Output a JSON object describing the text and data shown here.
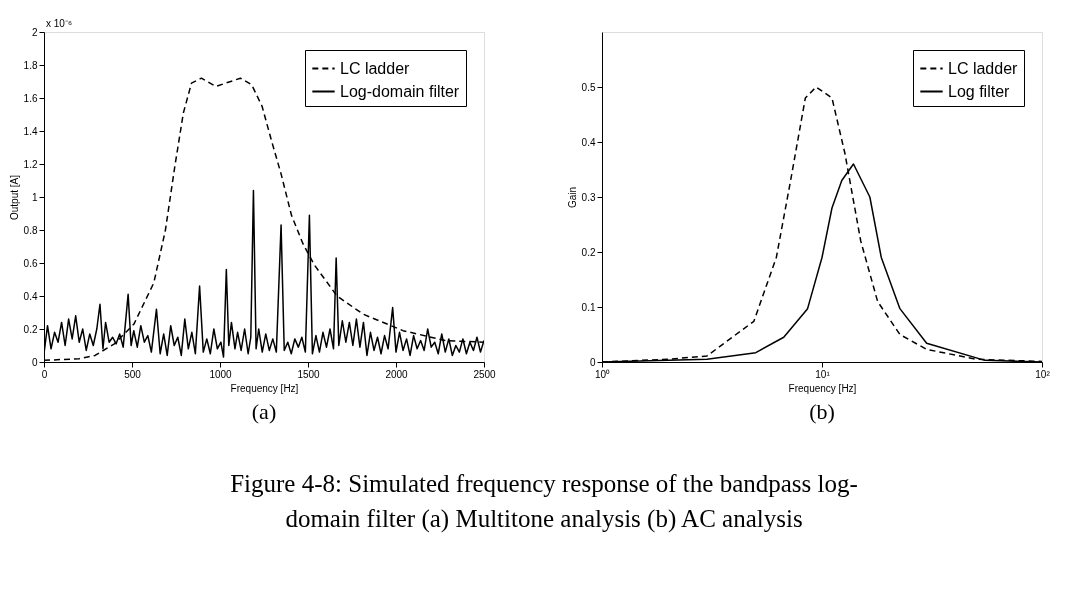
{
  "chart_data": [
    {
      "type": "line",
      "xlabel": "Frequency [Hz]",
      "ylabel": "Output [A]",
      "xlim": [
        0,
        2500
      ],
      "ylim": [
        0,
        2
      ],
      "xticks": [
        0,
        500,
        1000,
        1500,
        2000,
        2500
      ],
      "yticks": [
        0,
        0.2,
        0.4,
        0.6,
        0.8,
        1,
        1.2,
        1.4,
        1.6,
        1.8,
        2
      ],
      "grid": false,
      "legend": "top right",
      "annotations": [
        "x 10⁻⁶",
        "(a)"
      ],
      "series": [
        {
          "name": "LC ladder",
          "color": "#000000",
          "line_style": "dashed",
          "x": [
            0,
            200,
            290,
            400,
            511,
            624,
            690,
            744,
            792,
            838,
            894,
            976,
            1116,
            1180,
            1239,
            1293,
            1347,
            1406,
            1470,
            1535,
            1665,
            1813,
            2040,
            2280,
            2500
          ],
          "values": [
            0.01,
            0.02,
            0.04,
            0.11,
            0.23,
            0.48,
            0.8,
            1.19,
            1.51,
            1.69,
            1.72,
            1.67,
            1.72,
            1.68,
            1.55,
            1.34,
            1.14,
            0.89,
            0.72,
            0.59,
            0.4,
            0.29,
            0.19,
            0.13,
            0.12
          ]
        },
        {
          "name": "Log-domain filter",
          "color": "#000000",
          "line_style": "solid",
          "x": [
            0,
            20,
            40,
            60,
            80,
            100,
            120,
            140,
            160,
            180,
            200,
            220,
            240,
            260,
            280,
            300,
            318,
            335,
            350,
            370,
            390,
            410,
            430,
            450,
            478,
            495,
            510,
            530,
            550,
            570,
            590,
            610,
            639,
            660,
            680,
            700,
            720,
            740,
            760,
            780,
            800,
            820,
            840,
            860,
            884,
            905,
            925,
            945,
            965,
            985,
            1005,
            1020,
            1036,
            1050,
            1065,
            1085,
            1100,
            1120,
            1140,
            1160,
            1175,
            1190,
            1205,
            1220,
            1240,
            1260,
            1280,
            1300,
            1320,
            1347,
            1365,
            1385,
            1405,
            1425,
            1445,
            1465,
            1485,
            1508,
            1525,
            1545,
            1565,
            1585,
            1605,
            1625,
            1645,
            1660,
            1675,
            1695,
            1715,
            1735,
            1755,
            1775,
            1795,
            1815,
            1835,
            1855,
            1875,
            1895,
            1915,
            1935,
            1955,
            1981,
            2000,
            2020,
            2040,
            2060,
            2080,
            2100,
            2120,
            2140,
            2160,
            2180,
            2200,
            2220,
            2240,
            2260,
            2280,
            2300,
            2320,
            2340,
            2360,
            2380,
            2400,
            2420,
            2440,
            2460,
            2480,
            2500
          ],
          "values": [
            0.05,
            0.22,
            0.08,
            0.18,
            0.12,
            0.24,
            0.1,
            0.26,
            0.14,
            0.28,
            0.12,
            0.2,
            0.07,
            0.17,
            0.1,
            0.2,
            0.35,
            0.08,
            0.24,
            0.12,
            0.15,
            0.11,
            0.17,
            0.09,
            0.41,
            0.1,
            0.19,
            0.09,
            0.22,
            0.12,
            0.16,
            0.06,
            0.32,
            0.05,
            0.17,
            0.04,
            0.22,
            0.1,
            0.15,
            0.04,
            0.26,
            0.08,
            0.18,
            0.05,
            0.46,
            0.06,
            0.14,
            0.05,
            0.2,
            0.08,
            0.12,
            0.03,
            0.56,
            0.1,
            0.24,
            0.08,
            0.18,
            0.07,
            0.2,
            0.05,
            0.15,
            1.04,
            0.08,
            0.2,
            0.06,
            0.17,
            0.07,
            0.14,
            0.06,
            0.83,
            0.07,
            0.12,
            0.05,
            0.14,
            0.09,
            0.15,
            0.06,
            0.89,
            0.05,
            0.16,
            0.06,
            0.18,
            0.09,
            0.2,
            0.08,
            0.63,
            0.1,
            0.25,
            0.12,
            0.24,
            0.1,
            0.26,
            0.09,
            0.24,
            0.04,
            0.18,
            0.07,
            0.15,
            0.05,
            0.16,
            0.08,
            0.33,
            0.06,
            0.18,
            0.07,
            0.14,
            0.04,
            0.16,
            0.08,
            0.13,
            0.07,
            0.2,
            0.09,
            0.12,
            0.05,
            0.17,
            0.06,
            0.14,
            0.04,
            0.1,
            0.06,
            0.14,
            0.05,
            0.12,
            0.07,
            0.15,
            0.06,
            0.13
          ]
        }
      ]
    },
    {
      "type": "line",
      "xlabel": "Frequency [Hz]",
      "ylabel": "Gain",
      "log": "x",
      "xlim": [
        1,
        100
      ],
      "ylim": [
        0,
        0.6
      ],
      "xticks": [
        {
          "value": 1,
          "label": "10⁰"
        },
        {
          "value": 10,
          "label": "10¹"
        },
        {
          "value": 100,
          "label": "10²"
        }
      ],
      "yticks": [
        0,
        0.1,
        0.2,
        0.3,
        0.4,
        0.5
      ],
      "grid": false,
      "legend": "top right",
      "annotations": [
        "(b)",
        "Figure 4-8:  Simulated frequency response of the bandpass log-",
        "domain filter (a) Multitone analysis (b) AC analysis"
      ],
      "series": [
        {
          "name": "LC ladder",
          "color": "#000000",
          "line_style": "dashed",
          "x": [
            1,
            2,
            3,
            4.9,
            6.2,
            7.2,
            8.4,
            9.4,
            11.1,
            12.7,
            15,
            17.9,
            22.6,
            29.9,
            50,
            100
          ],
          "values": [
            0,
            0.005,
            0.011,
            0.074,
            0.19,
            0.33,
            0.48,
            0.5,
            0.48,
            0.38,
            0.22,
            0.11,
            0.05,
            0.023,
            0.005,
            0.001
          ]
        },
        {
          "name": "Log filter",
          "color": "#000000",
          "line_style": "solid",
          "x": [
            1,
            3,
            5,
            6.7,
            8.6,
            10,
            11.1,
            12.3,
            13.9,
            16.5,
            18.6,
            22.6,
            29.9,
            55,
            100
          ],
          "values": [
            0,
            0.005,
            0.017,
            0.045,
            0.097,
            0.19,
            0.28,
            0.33,
            0.36,
            0.3,
            0.19,
            0.097,
            0.034,
            0.003,
            0
          ]
        }
      ]
    }
  ]
}
